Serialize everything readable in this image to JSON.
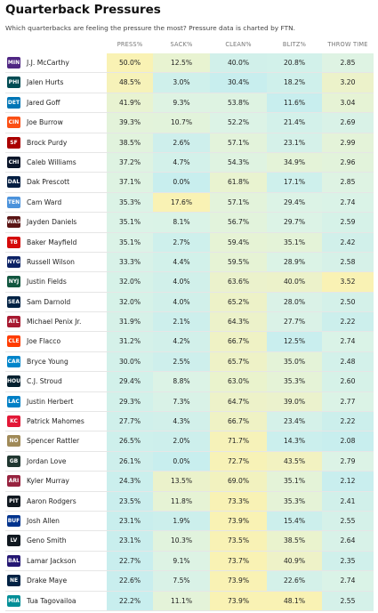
{
  "title": "Quarterback Pressures",
  "subtitle": "Which quarterbacks are feeling the pressure the most? Pressure data is charted by FTN.",
  "chart_data": {
    "type": "table",
    "columns": [
      "",
      "PRESS%",
      "SACK%",
      "CLEAN%",
      "BLITZ%",
      "THROW TIME"
    ],
    "rows": [
      {
        "team": "MIN",
        "player": "J.J. McCarthy",
        "press": "50.0%",
        "sack": "12.5%",
        "clean": "40.0%",
        "blitz": "20.8%",
        "throw_time": "2.85"
      },
      {
        "team": "PHI",
        "player": "Jalen Hurts",
        "press": "48.5%",
        "sack": "3.0%",
        "clean": "30.4%",
        "blitz": "18.2%",
        "throw_time": "3.20"
      },
      {
        "team": "DET",
        "player": "Jared Goff",
        "press": "41.9%",
        "sack": "9.3%",
        "clean": "53.8%",
        "blitz": "11.6%",
        "throw_time": "3.04"
      },
      {
        "team": "CIN",
        "player": "Joe Burrow",
        "press": "39.3%",
        "sack": "10.7%",
        "clean": "52.2%",
        "blitz": "21.4%",
        "throw_time": "2.69"
      },
      {
        "team": "SF",
        "player": "Brock Purdy",
        "press": "38.5%",
        "sack": "2.6%",
        "clean": "57.1%",
        "blitz": "23.1%",
        "throw_time": "2.99"
      },
      {
        "team": "CHI",
        "player": "Caleb Williams",
        "press": "37.2%",
        "sack": "4.7%",
        "clean": "54.3%",
        "blitz": "34.9%",
        "throw_time": "2.96"
      },
      {
        "team": "DAL",
        "player": "Dak Prescott",
        "press": "37.1%",
        "sack": "0.0%",
        "clean": "61.8%",
        "blitz": "17.1%",
        "throw_time": "2.85"
      },
      {
        "team": "TEN",
        "player": "Cam Ward",
        "press": "35.3%",
        "sack": "17.6%",
        "clean": "57.1%",
        "blitz": "29.4%",
        "throw_time": "2.74"
      },
      {
        "team": "WAS",
        "player": "Jayden Daniels",
        "press": "35.1%",
        "sack": "8.1%",
        "clean": "56.7%",
        "blitz": "29.7%",
        "throw_time": "2.59"
      },
      {
        "team": "TB",
        "player": "Baker Mayfield",
        "press": "35.1%",
        "sack": "2.7%",
        "clean": "59.4%",
        "blitz": "35.1%",
        "throw_time": "2.42"
      },
      {
        "team": "NYG",
        "player": "Russell Wilson",
        "press": "33.3%",
        "sack": "4.4%",
        "clean": "59.5%",
        "blitz": "28.9%",
        "throw_time": "2.58"
      },
      {
        "team": "NYJ",
        "player": "Justin Fields",
        "press": "32.0%",
        "sack": "4.0%",
        "clean": "63.6%",
        "blitz": "40.0%",
        "throw_time": "3.52"
      },
      {
        "team": "SEA",
        "player": "Sam Darnold",
        "press": "32.0%",
        "sack": "4.0%",
        "clean": "65.2%",
        "blitz": "28.0%",
        "throw_time": "2.50"
      },
      {
        "team": "ATL",
        "player": "Michael Penix Jr.",
        "press": "31.9%",
        "sack": "2.1%",
        "clean": "64.3%",
        "blitz": "27.7%",
        "throw_time": "2.22"
      },
      {
        "team": "CLE",
        "player": "Joe Flacco",
        "press": "31.2%",
        "sack": "4.2%",
        "clean": "66.7%",
        "blitz": "12.5%",
        "throw_time": "2.74"
      },
      {
        "team": "CAR",
        "player": "Bryce Young",
        "press": "30.0%",
        "sack": "2.5%",
        "clean": "65.7%",
        "blitz": "35.0%",
        "throw_time": "2.48"
      },
      {
        "team": "HOU",
        "player": "C.J. Stroud",
        "press": "29.4%",
        "sack": "8.8%",
        "clean": "63.0%",
        "blitz": "35.3%",
        "throw_time": "2.60"
      },
      {
        "team": "LAC",
        "player": "Justin Herbert",
        "press": "29.3%",
        "sack": "7.3%",
        "clean": "64.7%",
        "blitz": "39.0%",
        "throw_time": "2.77"
      },
      {
        "team": "KC",
        "player": "Patrick Mahomes",
        "press": "27.7%",
        "sack": "4.3%",
        "clean": "66.7%",
        "blitz": "23.4%",
        "throw_time": "2.22"
      },
      {
        "team": "NO",
        "player": "Spencer Rattler",
        "press": "26.5%",
        "sack": "2.0%",
        "clean": "71.7%",
        "blitz": "14.3%",
        "throw_time": "2.08"
      },
      {
        "team": "GB",
        "player": "Jordan Love",
        "press": "26.1%",
        "sack": "0.0%",
        "clean": "72.7%",
        "blitz": "43.5%",
        "throw_time": "2.79"
      },
      {
        "team": "ARI",
        "player": "Kyler Murray",
        "press": "24.3%",
        "sack": "13.5%",
        "clean": "69.0%",
        "blitz": "35.1%",
        "throw_time": "2.12"
      },
      {
        "team": "PIT",
        "player": "Aaron Rodgers",
        "press": "23.5%",
        "sack": "11.8%",
        "clean": "73.3%",
        "blitz": "35.3%",
        "throw_time": "2.41"
      },
      {
        "team": "BUF",
        "player": "Josh Allen",
        "press": "23.1%",
        "sack": "1.9%",
        "clean": "73.9%",
        "blitz": "15.4%",
        "throw_time": "2.55"
      },
      {
        "team": "LV",
        "player": "Geno Smith",
        "press": "23.1%",
        "sack": "10.3%",
        "clean": "73.5%",
        "blitz": "38.5%",
        "throw_time": "2.64"
      },
      {
        "team": "BAL",
        "player": "Lamar Jackson",
        "press": "22.7%",
        "sack": "9.1%",
        "clean": "73.7%",
        "blitz": "40.9%",
        "throw_time": "2.35"
      },
      {
        "team": "NE",
        "player": "Drake Maye",
        "press": "22.6%",
        "sack": "7.5%",
        "clean": "73.9%",
        "blitz": "22.6%",
        "throw_time": "2.74"
      },
      {
        "team": "MIA",
        "player": "Tua Tagovailoa",
        "press": "22.2%",
        "sack": "11.1%",
        "clean": "73.9%",
        "blitz": "48.1%",
        "throw_time": "2.55"
      }
    ],
    "team_colors": {
      "MIN": "#4f2683",
      "PHI": "#004c54",
      "DET": "#0076b6",
      "CIN": "#fb4f14",
      "SF": "#aa0000",
      "CHI": "#0b162a",
      "DAL": "#041e42",
      "TEN": "#4b92db",
      "WAS": "#5a1414",
      "TB": "#d50a0a",
      "NYG": "#0b2265",
      "NYJ": "#125740",
      "SEA": "#002244",
      "ATL": "#a71930",
      "CLE": "#ff3c00",
      "CAR": "#0085ca",
      "HOU": "#03202f",
      "LAC": "#0080c6",
      "KC": "#e31837",
      "NO": "#a08a58",
      "GB": "#203731",
      "ARI": "#97233f",
      "PIT": "#101820",
      "BUF": "#00338d",
      "LV": "#101820",
      "BAL": "#241773",
      "NE": "#002244",
      "MIA": "#008e97"
    },
    "scale_colors": {
      "high": "#f9f2b4",
      "mid": "#dcf3e6",
      "low": "#c8eeee"
    }
  }
}
